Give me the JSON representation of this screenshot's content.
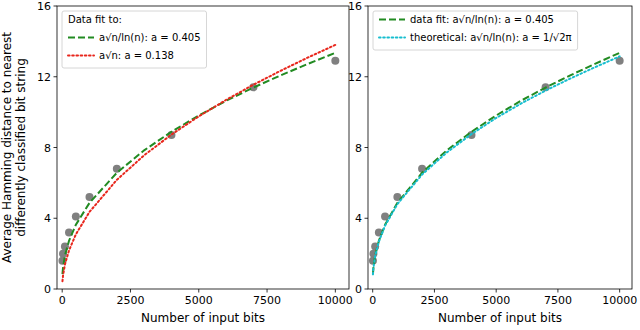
{
  "chart_data": [
    {
      "type": "line",
      "xlabel": "Number of input bits",
      "ylabel": [
        "Average Hamming distance to nearest",
        "differently classified bit string"
      ],
      "xlim": [
        -190,
        10500
      ],
      "xticks": [
        0,
        2500,
        5000,
        7500,
        10000
      ],
      "ylim": [
        0,
        16
      ],
      "yticks": [
        0,
        4,
        8,
        12,
        16
      ],
      "legend": "upper left",
      "legend_title": "Data fit to:",
      "series": [
        {
          "type": "scatter",
          "color": "#808080",
          "marker": "circle",
          "x": [
            10,
            30,
            100,
            250,
            500,
            1000,
            2000,
            4000,
            7000,
            10000
          ],
          "values": [
            1.6,
            2.0,
            2.4,
            3.2,
            4.1,
            5.2,
            6.8,
            8.7,
            11.4,
            12.9
          ]
        },
        {
          "name": "a√n/ln(n): a = 0.405",
          "type": "line",
          "color": "#228b22",
          "line_style": "dashed",
          "x": [
            10,
            30,
            100,
            250,
            500,
            1000,
            2000,
            3000,
            4000,
            5000,
            6000,
            7000,
            8000,
            9000,
            10000
          ],
          "values": [
            0.84,
            1.2,
            1.89,
            2.73,
            3.63,
            4.87,
            6.57,
            7.84,
            8.89,
            9.81,
            10.64,
            11.39,
            12.08,
            12.73,
            13.35
          ]
        },
        {
          "name": "a√n: a = 0.138",
          "type": "line",
          "color": "#e8261c",
          "line_style": "dotted",
          "x": [
            10,
            30,
            100,
            250,
            500,
            1000,
            2000,
            3000,
            4000,
            5000,
            6000,
            7000,
            8000,
            9000,
            10000
          ],
          "values": [
            0.44,
            0.76,
            1.38,
            2.18,
            3.09,
            4.36,
            6.17,
            7.56,
            8.73,
            9.76,
            10.69,
            11.55,
            12.34,
            13.09,
            13.8
          ]
        }
      ]
    },
    {
      "type": "line",
      "xlabel": "Number of input bits",
      "xlim": [
        -190,
        10500
      ],
      "xticks": [
        0,
        2500,
        5000,
        7500,
        10000
      ],
      "ylim": [
        0,
        16
      ],
      "yticks": [
        0,
        4,
        8,
        12,
        16
      ],
      "legend": "upper left",
      "series": [
        {
          "type": "scatter",
          "color": "#808080",
          "marker": "circle",
          "x": [
            10,
            30,
            100,
            250,
            500,
            1000,
            2000,
            4000,
            7000,
            10000
          ],
          "values": [
            1.6,
            2.0,
            2.4,
            3.2,
            4.1,
            5.2,
            6.8,
            8.7,
            11.4,
            12.9
          ]
        },
        {
          "name": "data fit: a√n/ln(n): a = 0.405",
          "type": "line",
          "color": "#228b22",
          "line_style": "dashed",
          "x": [
            10,
            30,
            100,
            250,
            500,
            1000,
            2000,
            3000,
            4000,
            5000,
            6000,
            7000,
            8000,
            9000,
            10000
          ],
          "values": [
            0.84,
            1.2,
            1.89,
            2.73,
            3.63,
            4.87,
            6.57,
            7.84,
            8.89,
            9.81,
            10.64,
            11.39,
            12.08,
            12.73,
            13.35
          ]
        },
        {
          "name": "theoretical: a√n/ln(n): a = 1/√2π",
          "type": "line",
          "color": "#17becf",
          "line_style": "dotted",
          "x": [
            10,
            30,
            100,
            250,
            500,
            1000,
            2000,
            3000,
            4000,
            5000,
            6000,
            7000,
            8000,
            9000,
            10000
          ],
          "values": [
            0.83,
            1.19,
            1.86,
            2.68,
            3.58,
            4.8,
            6.47,
            7.72,
            8.76,
            9.67,
            10.48,
            11.22,
            11.9,
            12.54,
            13.15
          ]
        }
      ]
    }
  ]
}
